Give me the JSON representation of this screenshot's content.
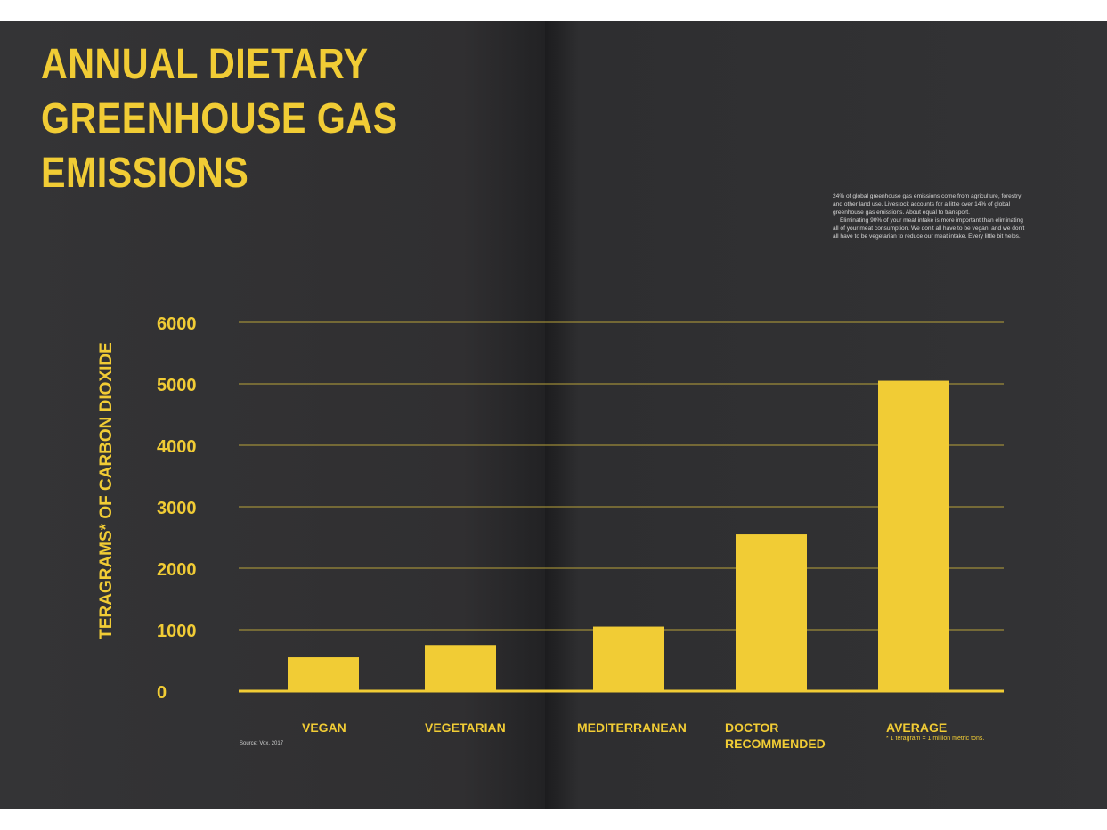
{
  "sidenote": {
    "paragraph_1": "24% of global greenhouse gas emissions come from agriculture, forestry and other land use. Livestock accounts for a little over 14% of global greenhouse gas emissions. About equal to transport.",
    "paragraph_2": "Eliminating 90% of your meat intake is more important than eliminating all of your meat consumption. We don't all have to be vegan, and we don't all have to be vegetarian to reduce our meat intake. Every little bit helps."
  },
  "source": "Source: Vox, 2017",
  "footnote": "* 1 teragram = 1 million metric tons.",
  "colors": {
    "accent": "#f1cc35",
    "background": "#2f2f31",
    "gridline": "#b8a23a"
  },
  "chart_data": {
    "type": "bar",
    "title": "ANNUAL DIETARY\nGREENHOUSE GAS\nEMISSIONS",
    "xlabel": "",
    "ylabel": "TERAGRAMS* OF CARBON DIOXIDE",
    "categories": [
      "VEGAN",
      "VEGETARIAN",
      "MEDITERRANEAN",
      "DOCTOR\nRECOMMENDED",
      "AVERAGE"
    ],
    "values": [
      550,
      750,
      1050,
      2550,
      5050
    ],
    "ylim": [
      0,
      6000
    ],
    "yticks": [
      0,
      1000,
      2000,
      3000,
      4000,
      5000,
      6000
    ],
    "grid": true,
    "legend": "none"
  }
}
